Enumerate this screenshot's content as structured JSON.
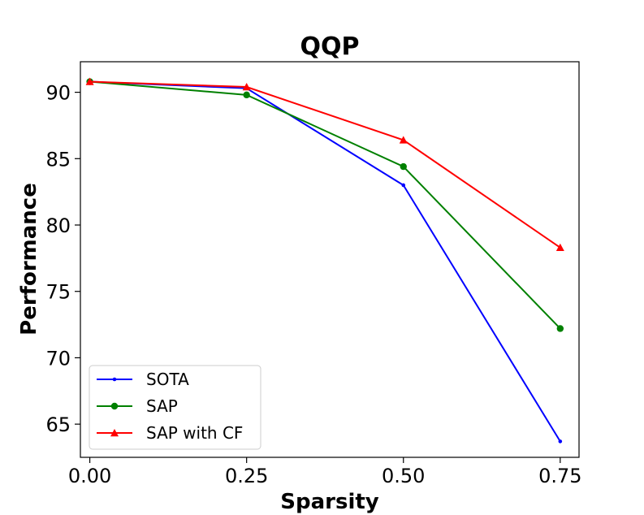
{
  "chart_data": {
    "type": "line",
    "title": "QQP",
    "xlabel": "Sparsity",
    "ylabel": "Performance",
    "x": [
      0.0,
      0.25,
      0.5,
      0.75
    ],
    "xticks": [
      "0.00",
      "0.25",
      "0.50",
      "0.75"
    ],
    "yticks": [
      65,
      70,
      75,
      80,
      85,
      90
    ],
    "xlim": [
      -0.015,
      0.78
    ],
    "ylim": [
      62.5,
      92.3
    ],
    "grid": false,
    "legend_position": "lower-left",
    "series": [
      {
        "name": "SOTA",
        "color": "#0000ff",
        "marker": "small-dot",
        "values": [
          90.8,
          90.3,
          83.0,
          63.7
        ]
      },
      {
        "name": "SAP",
        "color": "#008000",
        "marker": "circle",
        "values": [
          90.8,
          89.8,
          84.4,
          72.2
        ]
      },
      {
        "name": "SAP with CF",
        "color": "#ff0000",
        "marker": "triangle",
        "values": [
          90.8,
          90.4,
          86.4,
          78.3
        ]
      }
    ]
  }
}
